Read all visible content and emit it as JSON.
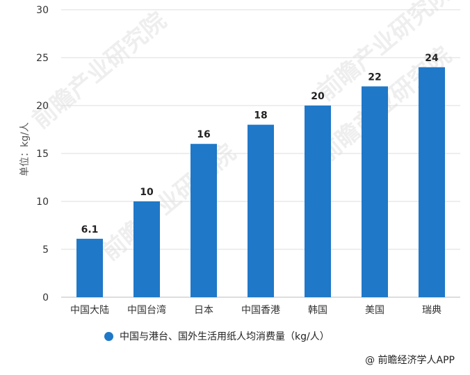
{
  "chart_data": {
    "type": "bar",
    "title": "",
    "xlabel": "",
    "ylabel": "单位：kg/人",
    "categories": [
      "中国大陆",
      "中国台湾",
      "日本",
      "中国香港",
      "韩国",
      "美国",
      "瑞典"
    ],
    "series": [
      {
        "name": "中国与港台、国外生活用纸人均消费量（kg/人）",
        "values": [
          6.1,
          10,
          16,
          18,
          20,
          22,
          24
        ],
        "labels": [
          "6.1",
          "10",
          "16",
          "18",
          "20",
          "22",
          "24"
        ],
        "color": "#1f78c8"
      }
    ],
    "ylim": [
      0,
      30
    ],
    "yticks": [
      0,
      5,
      10,
      15,
      20,
      25,
      30
    ],
    "grid": true,
    "legend_position": "bottom"
  },
  "legend": {
    "label": "中国与港台、国外生活用纸人均消费量（kg/人）"
  },
  "source": {
    "credit": "@ 前瞻经济学人APP"
  },
  "watermark": {
    "text": "前瞻产业研究院"
  },
  "colors": {
    "bar": "#1f78c8",
    "grid": "#dddddd",
    "axis_text": "#333333"
  }
}
